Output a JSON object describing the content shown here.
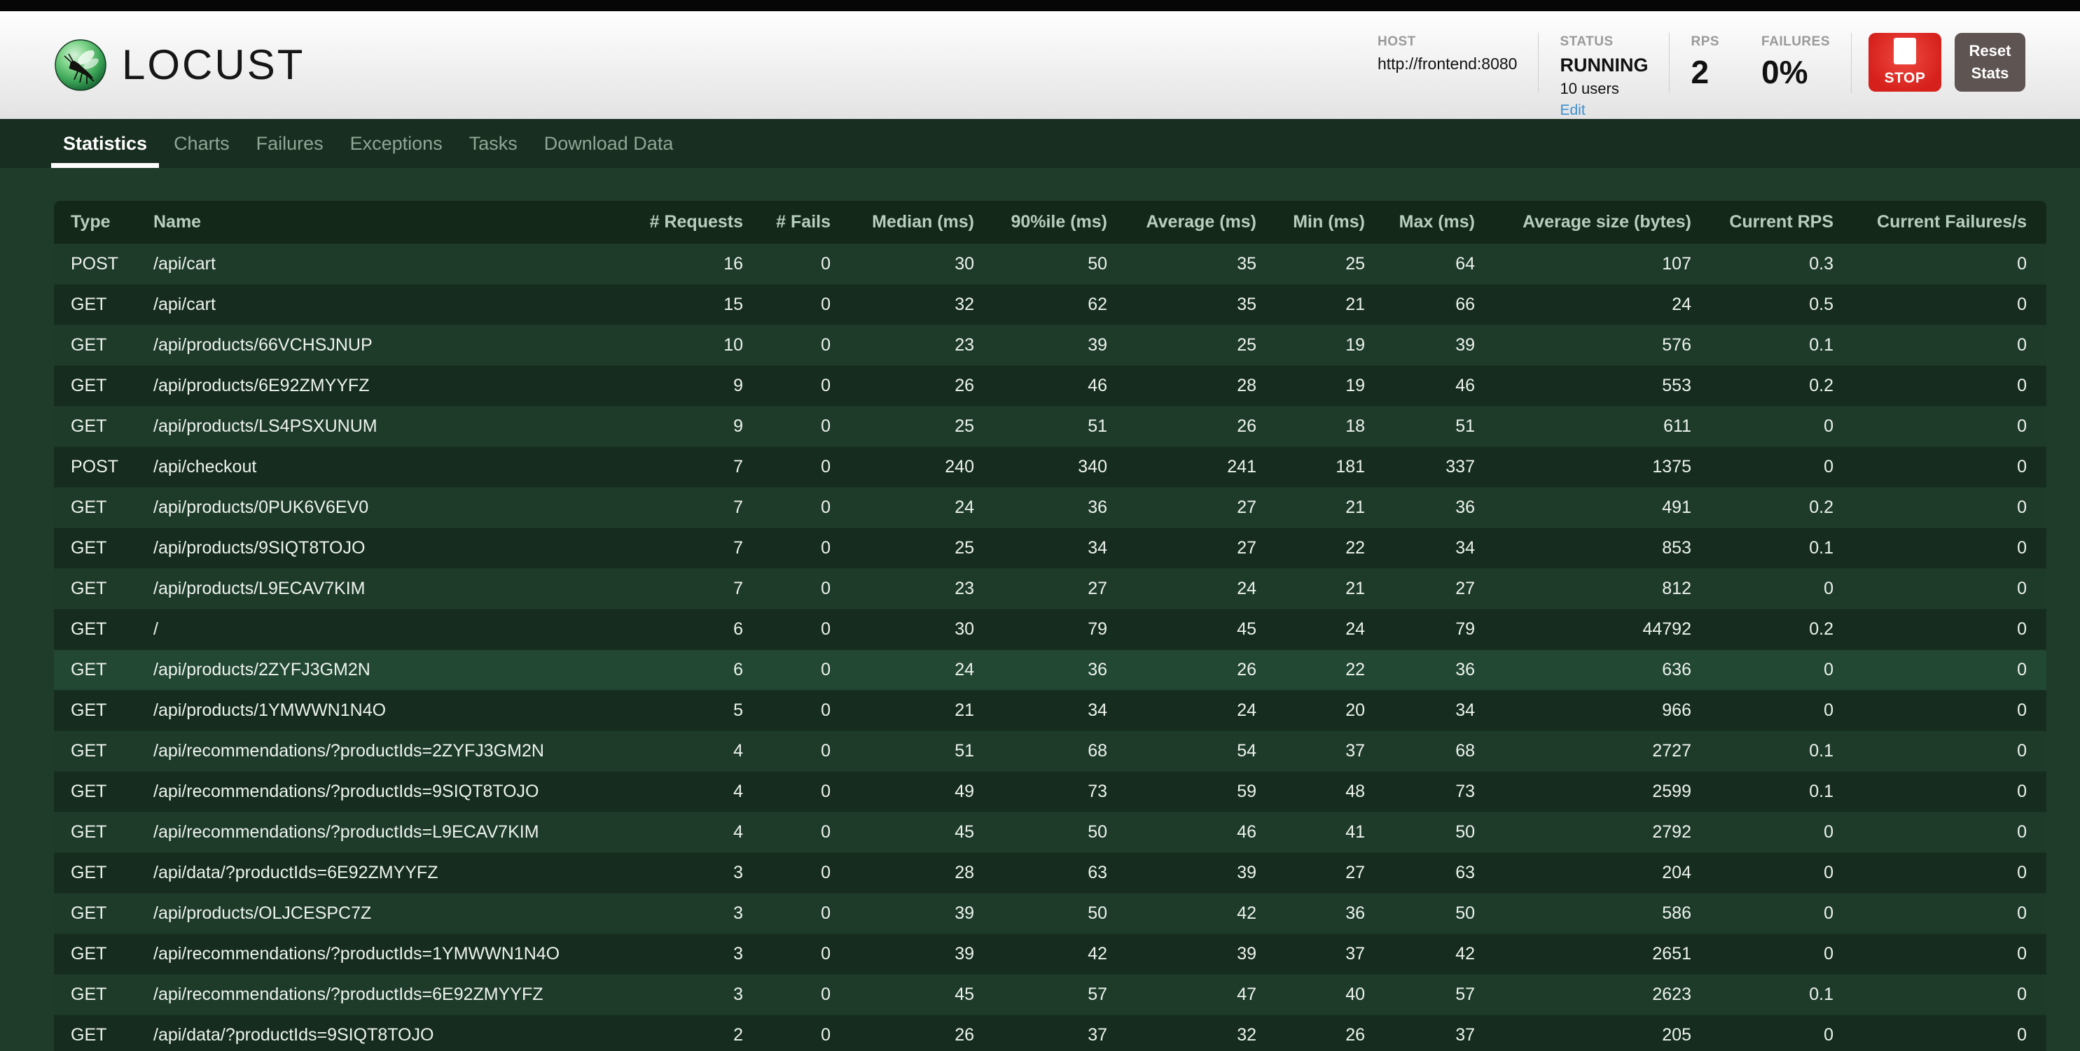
{
  "header": {
    "logo_text": "LOCUST",
    "host": {
      "label": "HOST",
      "value": "http://frontend:8080"
    },
    "status": {
      "label": "STATUS",
      "value": "RUNNING",
      "users": "10 users",
      "edit_link": "Edit"
    },
    "rps": {
      "label": "RPS",
      "value": "2"
    },
    "failures": {
      "label": "FAILURES",
      "value": "0%"
    },
    "stop_button": "STOP",
    "reset_button": "Reset Stats"
  },
  "nav": {
    "tabs": [
      {
        "label": "Statistics",
        "active": true
      },
      {
        "label": "Charts",
        "active": false
      },
      {
        "label": "Failures",
        "active": false
      },
      {
        "label": "Exceptions",
        "active": false
      },
      {
        "label": "Tasks",
        "active": false
      },
      {
        "label": "Download Data",
        "active": false
      }
    ]
  },
  "table": {
    "columns": [
      "Type",
      "Name",
      "# Requests",
      "# Fails",
      "Median (ms)",
      "90%ile (ms)",
      "Average (ms)",
      "Min (ms)",
      "Max (ms)",
      "Average size (bytes)",
      "Current RPS",
      "Current Failures/s"
    ],
    "highlighted_row_index": 10,
    "rows": [
      [
        "POST",
        "/api/cart",
        "16",
        "0",
        "30",
        "50",
        "35",
        "25",
        "64",
        "107",
        "0.3",
        "0"
      ],
      [
        "GET",
        "/api/cart",
        "15",
        "0",
        "32",
        "62",
        "35",
        "21",
        "66",
        "24",
        "0.5",
        "0"
      ],
      [
        "GET",
        "/api/products/66VCHSJNUP",
        "10",
        "0",
        "23",
        "39",
        "25",
        "19",
        "39",
        "576",
        "0.1",
        "0"
      ],
      [
        "GET",
        "/api/products/6E92ZMYYFZ",
        "9",
        "0",
        "26",
        "46",
        "28",
        "19",
        "46",
        "553",
        "0.2",
        "0"
      ],
      [
        "GET",
        "/api/products/LS4PSXUNUM",
        "9",
        "0",
        "25",
        "51",
        "26",
        "18",
        "51",
        "611",
        "0",
        "0"
      ],
      [
        "POST",
        "/api/checkout",
        "7",
        "0",
        "240",
        "340",
        "241",
        "181",
        "337",
        "1375",
        "0",
        "0"
      ],
      [
        "GET",
        "/api/products/0PUK6V6EV0",
        "7",
        "0",
        "24",
        "36",
        "27",
        "21",
        "36",
        "491",
        "0.2",
        "0"
      ],
      [
        "GET",
        "/api/products/9SIQT8TOJO",
        "7",
        "0",
        "25",
        "34",
        "27",
        "22",
        "34",
        "853",
        "0.1",
        "0"
      ],
      [
        "GET",
        "/api/products/L9ECAV7KIM",
        "7",
        "0",
        "23",
        "27",
        "24",
        "21",
        "27",
        "812",
        "0",
        "0"
      ],
      [
        "GET",
        "/",
        "6",
        "0",
        "30",
        "79",
        "45",
        "24",
        "79",
        "44792",
        "0.2",
        "0"
      ],
      [
        "GET",
        "/api/products/2ZYFJ3GM2N",
        "6",
        "0",
        "24",
        "36",
        "26",
        "22",
        "36",
        "636",
        "0",
        "0"
      ],
      [
        "GET",
        "/api/products/1YMWWN1N4O",
        "5",
        "0",
        "21",
        "34",
        "24",
        "20",
        "34",
        "966",
        "0",
        "0"
      ],
      [
        "GET",
        "/api/recommendations/?productIds=2ZYFJ3GM2N",
        "4",
        "0",
        "51",
        "68",
        "54",
        "37",
        "68",
        "2727",
        "0.1",
        "0"
      ],
      [
        "GET",
        "/api/recommendations/?productIds=9SIQT8TOJO",
        "4",
        "0",
        "49",
        "73",
        "59",
        "48",
        "73",
        "2599",
        "0.1",
        "0"
      ],
      [
        "GET",
        "/api/recommendations/?productIds=L9ECAV7KIM",
        "4",
        "0",
        "45",
        "50",
        "46",
        "41",
        "50",
        "2792",
        "0",
        "0"
      ],
      [
        "GET",
        "/api/data/?productIds=6E92ZMYYFZ",
        "3",
        "0",
        "28",
        "63",
        "39",
        "27",
        "63",
        "204",
        "0",
        "0"
      ],
      [
        "GET",
        "/api/products/OLJCESPC7Z",
        "3",
        "0",
        "39",
        "50",
        "42",
        "36",
        "50",
        "586",
        "0",
        "0"
      ],
      [
        "GET",
        "/api/recommendations/?productIds=1YMWWN1N4O",
        "3",
        "0",
        "39",
        "42",
        "39",
        "37",
        "42",
        "2651",
        "0",
        "0"
      ],
      [
        "GET",
        "/api/recommendations/?productIds=6E92ZMYYFZ",
        "3",
        "0",
        "45",
        "57",
        "47",
        "40",
        "57",
        "2623",
        "0.1",
        "0"
      ],
      [
        "GET",
        "/api/data/?productIds=9SIQT8TOJO",
        "2",
        "0",
        "26",
        "37",
        "32",
        "26",
        "37",
        "205",
        "0",
        "0"
      ]
    ]
  },
  "colors": {
    "stop_red": "#d6201b",
    "reset_gray": "#5e5452",
    "link_blue": "#3f8fce",
    "nav_green": "#182e20",
    "page_green": "#1f3c2b",
    "table_header_green": "#142819",
    "highlight_green": "#224733"
  }
}
